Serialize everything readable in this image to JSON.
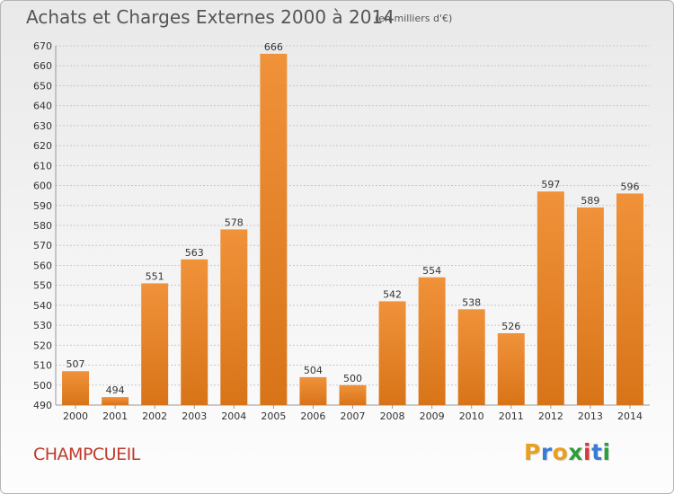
{
  "header": {
    "title": "Achats et Charges Externes 2000 à 2014",
    "subtitle": "(en milliers d'€)"
  },
  "footer": {
    "commune": "CHAMPCUEIL",
    "logo_letters": [
      "P",
      "r",
      "o",
      "x",
      "i",
      "t",
      "i"
    ],
    "logo_colors": [
      "#e8a020",
      "#3a7bd5",
      "#e8a020",
      "#2e9e3a",
      "#d63a3a",
      "#3a7bd5",
      "#2e9e3a"
    ]
  },
  "colors": {
    "bar": "#f0923a",
    "bar_dark": "#d87418",
    "grid": "#c8c8c8"
  },
  "chart_data": {
    "type": "bar",
    "title": "Achats et Charges Externes 2000 à 2014",
    "subtitle": "(en milliers d'€)",
    "categories": [
      "2000",
      "2001",
      "2002",
      "2003",
      "2004",
      "2005",
      "2006",
      "2007",
      "2008",
      "2009",
      "2010",
      "2011",
      "2012",
      "2013",
      "2014"
    ],
    "values": [
      507,
      494,
      551,
      563,
      578,
      666,
      504,
      500,
      542,
      554,
      538,
      526,
      597,
      589,
      596
    ],
    "ylim": [
      490,
      670
    ],
    "yticks": [
      490,
      500,
      510,
      520,
      530,
      540,
      550,
      560,
      570,
      580,
      590,
      600,
      610,
      620,
      630,
      640,
      650,
      660,
      670
    ],
    "grid": true
  }
}
